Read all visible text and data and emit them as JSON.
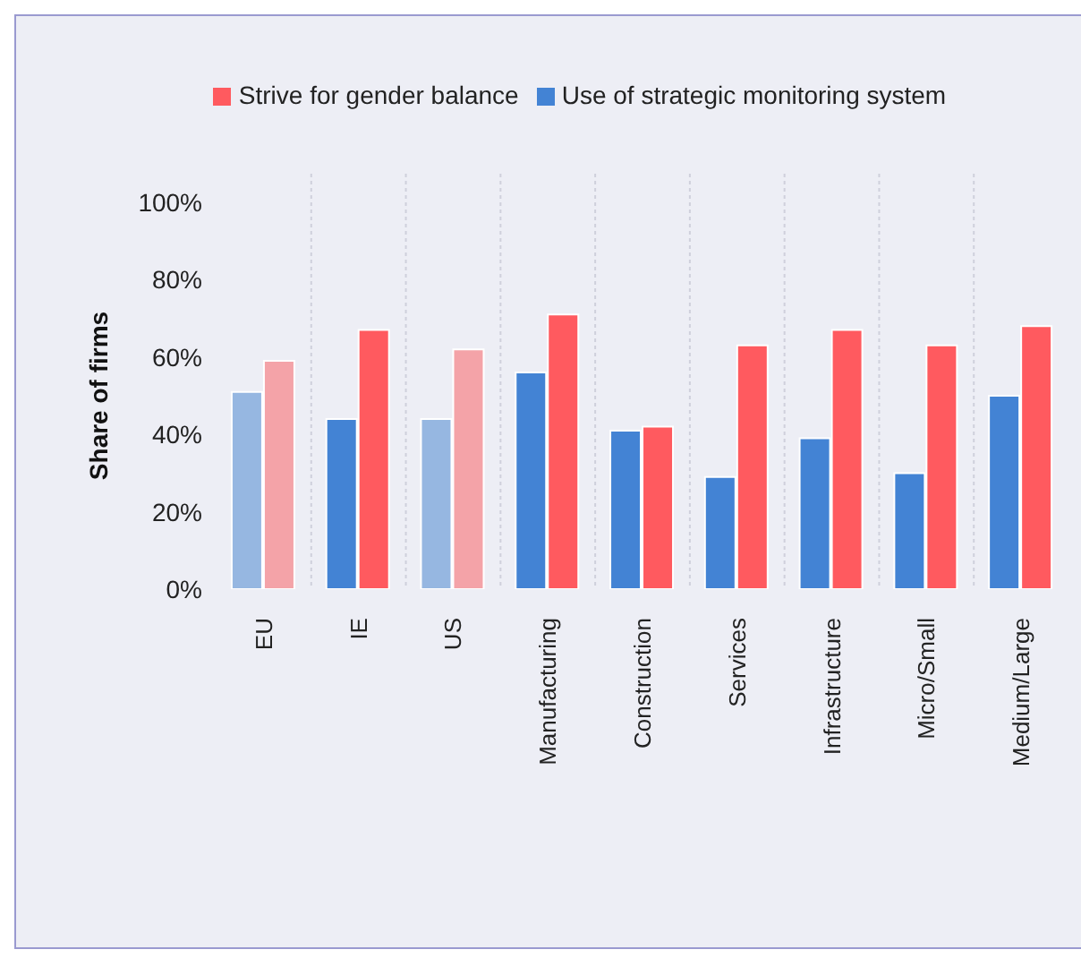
{
  "chart_data": {
    "type": "bar",
    "categories": [
      "EU",
      "IE",
      "US",
      "Manufacturing",
      "Construction",
      "Services",
      "Infrastructure",
      "Micro/Small",
      "Medium/Large"
    ],
    "series": [
      {
        "name": "Use of strategic monitoring system",
        "color": "#4383d4",
        "colors": [
          "#96b7e1",
          "#4383d4",
          "#96b7e1",
          "#4383d4",
          "#4383d4",
          "#4383d4",
          "#4383d4",
          "#4383d4",
          "#4383d4"
        ],
        "values": [
          51,
          44,
          44,
          56,
          41,
          29,
          39,
          30,
          50
        ]
      },
      {
        "name": "Strive for gender balance",
        "color": "#ff5a5f",
        "colors": [
          "#f4a3a8",
          "#ff5a5f",
          "#f4a3a8",
          "#ff5a5f",
          "#ff5a5f",
          "#ff5a5f",
          "#ff5a5f",
          "#ff5a5f",
          "#ff5a5f"
        ],
        "values": [
          59,
          67,
          62,
          71,
          42,
          63,
          67,
          63,
          68
        ]
      }
    ],
    "ylabel": "Share of firms",
    "ylim": [
      0,
      100
    ],
    "yticks": [
      {
        "value": 0,
        "label": "0%"
      },
      {
        "value": 20,
        "label": "20%"
      },
      {
        "value": 40,
        "label": "40%"
      },
      {
        "value": 60,
        "label": "60%"
      },
      {
        "value": 80,
        "label": "80%"
      },
      {
        "value": 100,
        "label": "100%"
      }
    ],
    "grid": "x",
    "legend": "top"
  }
}
